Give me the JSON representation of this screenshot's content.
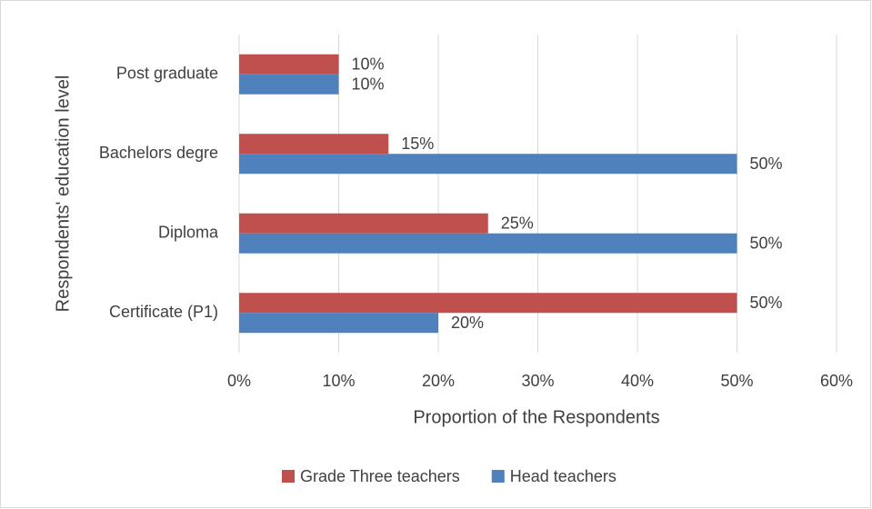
{
  "chart_data": {
    "type": "barh",
    "y_label": "Respondents' education level",
    "x_label": "Proportion of the Respondents",
    "categories": [
      "Post graduate",
      "Bachelors degre",
      "Diploma",
      "Certificate (P1)"
    ],
    "series": [
      {
        "name": "Grade Three teachers",
        "color": "#c0504d",
        "values": [
          10,
          15,
          25,
          50
        ],
        "value_labels": [
          "10%",
          "15%",
          "25%",
          "50%"
        ]
      },
      {
        "name": "Head teachers",
        "color": "#4f81bd",
        "values": [
          10,
          50,
          50,
          20
        ],
        "value_labels": [
          "10%",
          "50%",
          "50%",
          "20%"
        ]
      }
    ],
    "xlim": [
      0,
      60
    ],
    "xticks": [
      {
        "value": 0,
        "label": "0%"
      },
      {
        "value": 10,
        "label": "10%"
      },
      {
        "value": 20,
        "label": "20%"
      },
      {
        "value": 30,
        "label": "30%"
      },
      {
        "value": 40,
        "label": "40%"
      },
      {
        "value": 50,
        "label": "50%"
      },
      {
        "value": 60,
        "label": "60%"
      }
    ],
    "grid": true,
    "legend": "bottom"
  }
}
